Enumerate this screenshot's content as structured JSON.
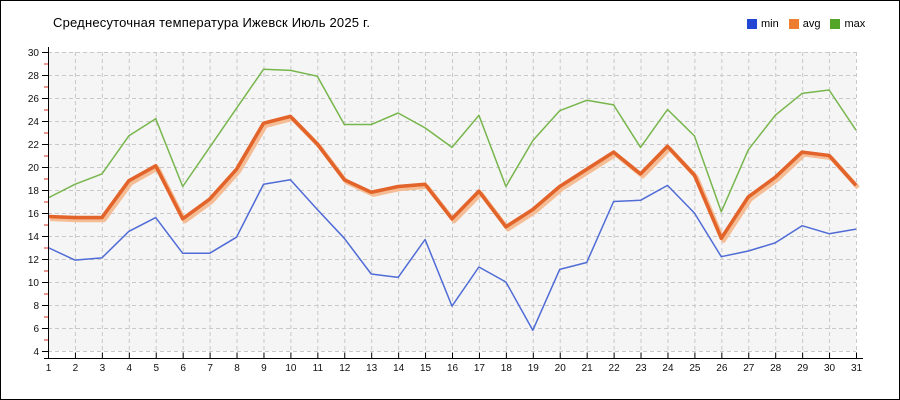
{
  "title": "Среднесуточная температура Ижевск  Июль 2025 г.",
  "legend": {
    "items": [
      {
        "label": "min",
        "color": "#2347d5"
      },
      {
        "label": "avg",
        "color": "#ed7d31"
      },
      {
        "label": "max",
        "color": "#53a527"
      }
    ]
  },
  "colors": {
    "grid": "#c9c9c9",
    "plot_background": "#f5f5f5",
    "axis": "#000000",
    "minor_tick": "#d93025",
    "tick_label": "#111111"
  },
  "chart_data": {
    "type": "line",
    "title": "Среднесуточная температура Ижевск  Июль 2025 г.",
    "xlabel": "",
    "ylabel": "",
    "x": [
      1,
      2,
      3,
      4,
      5,
      6,
      7,
      8,
      9,
      10,
      11,
      12,
      13,
      14,
      15,
      16,
      17,
      18,
      19,
      20,
      21,
      22,
      23,
      24,
      25,
      26,
      27,
      28,
      29,
      30,
      31
    ],
    "x_ticks": [
      "1",
      "2",
      "3",
      "4",
      "5",
      "6",
      "7",
      "8",
      "9",
      "10",
      "11",
      "12",
      "13",
      "14",
      "15",
      "16",
      "17",
      "18",
      "19",
      "20",
      "21",
      "22",
      "23",
      "24",
      "25",
      "26",
      "27",
      "28",
      "29",
      "30",
      "31"
    ],
    "y_ticks": [
      "4",
      "6",
      "8",
      "10",
      "12",
      "14",
      "16",
      "18",
      "20",
      "22",
      "24",
      "26",
      "28",
      "30"
    ],
    "ylim": [
      4,
      30
    ],
    "ytick_step": 2,
    "grid": true,
    "legend_position": "top-right",
    "series": [
      {
        "name": "min",
        "color": "#4f6bd6",
        "width": 1.5,
        "values": [
          13.0,
          11.9,
          12.1,
          14.4,
          15.6,
          12.5,
          12.5,
          13.9,
          18.5,
          18.9,
          16.3,
          13.8,
          10.7,
          10.4,
          13.7,
          7.9,
          11.3,
          10.0,
          5.8,
          11.1,
          11.7,
          17.0,
          17.1,
          18.4,
          16.0,
          12.2,
          12.7,
          13.4,
          14.9,
          14.2,
          14.6
        ]
      },
      {
        "name": "avg",
        "color": "#e2642a",
        "shadow_color": "#f5bd95",
        "width": 3.6,
        "values": [
          15.7,
          15.6,
          15.6,
          18.8,
          20.1,
          15.5,
          17.2,
          19.8,
          23.8,
          24.4,
          22.0,
          18.9,
          17.8,
          18.3,
          18.5,
          15.5,
          17.9,
          14.8,
          16.3,
          18.3,
          19.8,
          21.3,
          19.4,
          21.8,
          19.3,
          13.8,
          17.4,
          19.1,
          21.3,
          21.0,
          18.4
        ]
      },
      {
        "name": "max",
        "color": "#77b64c",
        "width": 1.5,
        "values": [
          17.3,
          18.5,
          19.4,
          22.7,
          24.2,
          18.3,
          21.7,
          25.1,
          28.5,
          28.4,
          27.9,
          23.7,
          23.7,
          24.7,
          23.4,
          21.7,
          24.5,
          18.3,
          22.3,
          24.9,
          25.8,
          25.4,
          21.7,
          25.0,
          22.7,
          16.1,
          21.5,
          24.5,
          26.4,
          26.7,
          23.2
        ]
      }
    ]
  }
}
